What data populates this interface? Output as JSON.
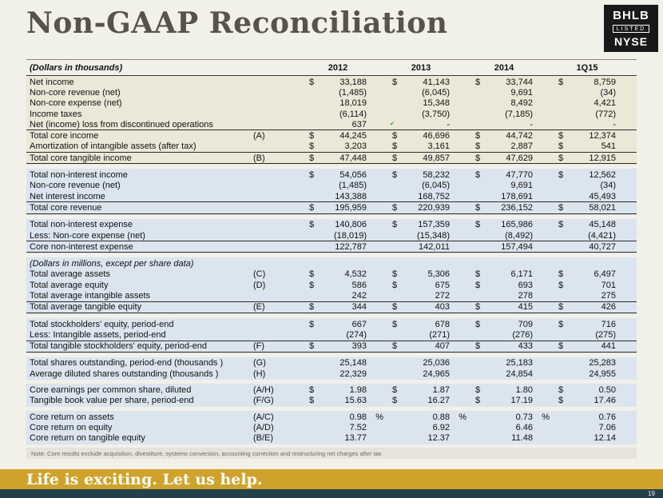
{
  "slide": {
    "title": "Non-GAAP Reconciliation"
  },
  "logo": {
    "ticker": "BHLB",
    "listed": "LISTED",
    "exchange": "NYSE"
  },
  "colors": {
    "section_beige": "#ebe8d8",
    "section_blue": "#dbe5ef",
    "footer_gold": "#cfa32b",
    "footer_teal": "#24414b",
    "title_gray": "#55534a"
  },
  "table": {
    "header": {
      "label": "(Dollars in thousands)",
      "columns": [
        "2012",
        "2013",
        "2014",
        "1Q15"
      ]
    },
    "sections": [
      {
        "bg": "beige",
        "rows": [
          {
            "label": "Net income",
            "cells": [
              "$ 33,188",
              "$ 41,143",
              "$ 33,744",
              "$ 8,759"
            ]
          },
          {
            "label": "Non-core revenue (net)",
            "cells": [
              "(1,485)",
              "(6,045)",
              "9,691",
              "(34)"
            ]
          },
          {
            "label": "Non-core expense (net)",
            "cells": [
              "18,019",
              "15,348",
              "8,492",
              "4,421"
            ]
          },
          {
            "label": "Income taxes",
            "cells": [
              "(6,114)",
              "(3,750)",
              "(7,185)",
              "(772)"
            ]
          },
          {
            "label": "Net (income) loss from discontinued operations",
            "cells": [
              "637",
              "-",
              "-",
              "-"
            ]
          },
          {
            "label": "Total core income",
            "tag": "(A)",
            "border": "bt",
            "cells": [
              "$ 44,245",
              "$ 46,696",
              "$ 44,742",
              "$ 12,374"
            ]
          },
          {
            "label": "Amortization of intangible assets (after tax)",
            "cells": [
              "$ 3,203",
              "$ 3,161",
              "$ 2,887",
              "$ 541"
            ]
          },
          {
            "label": "Total core tangible income",
            "tag": "(B)",
            "border": "bt bb",
            "cells": [
              "$ 47,448",
              "$ 49,857",
              "$ 47,629",
              "$ 12,915"
            ]
          }
        ]
      },
      {
        "bg": "blue",
        "rows": [
          {
            "label": "Total non-interest income",
            "cells": [
              "$ 54,056",
              "$ 58,232",
              "$ 47,770",
              "$ 12,562"
            ]
          },
          {
            "label": "Non-core revenue (net)",
            "cells": [
              "(1,485)",
              "(6,045)",
              "9,691",
              "(34)"
            ]
          },
          {
            "label": "Net interest income",
            "cells": [
              "143,388",
              "168,752",
              "178,691",
              "45,493"
            ]
          },
          {
            "label": "Total core revenue",
            "border": "bt bb",
            "cells": [
              "$ 195,959",
              "$ 220,939",
              "$ 236,152",
              "$ 58,021"
            ]
          }
        ]
      },
      {
        "bg": "blue",
        "rows": [
          {
            "label": "Total non-interest expense",
            "cells": [
              "$ 140,806",
              "$ 157,359",
              "$ 165,986",
              "$ 45,148"
            ]
          },
          {
            "label": "Less: Non-core expense (net)",
            "cells": [
              "(18,019)",
              "(15,348)",
              "(8,492)",
              "(4,421)"
            ]
          },
          {
            "label": "Core non-interest expense",
            "border": "bt bb",
            "cells": [
              "122,787",
              "142,011",
              "157,494",
              "40,727"
            ]
          }
        ]
      },
      {
        "bg": "blue",
        "rows": [
          {
            "label": "(Dollars in millions, except per share data)",
            "subheader": true,
            "italic": true
          },
          {
            "label": "Total average assets",
            "tag": "(C)",
            "cells": [
              "$ 4,532",
              "$ 5,306",
              "$ 6,171",
              "$ 6,497"
            ]
          },
          {
            "label": "Total average equity",
            "tag": "(D)",
            "cells": [
              "$ 586",
              "$ 675",
              "$ 693",
              "$ 701"
            ]
          },
          {
            "label": "Total average intangible assets",
            "cells": [
              "242",
              "272",
              "278",
              "275"
            ]
          },
          {
            "label": "Total average tangible equity",
            "tag": "(E)",
            "border": "bt bb",
            "cells": [
              "$ 344",
              "$ 403",
              "$ 415",
              "$ 426"
            ]
          }
        ]
      },
      {
        "bg": "blue",
        "rows": [
          {
            "label": "Total stockholders' equity, period-end",
            "cells": [
              "$ 667",
              "$ 678",
              "$ 709",
              "$ 716"
            ]
          },
          {
            "label": "Less: Intangible assets, period-end",
            "cells": [
              "(274)",
              "(271)",
              "(276)",
              "(275)"
            ]
          },
          {
            "label": "Total tangible stockholders' equity, period-end",
            "tag": "(F)",
            "border": "bt bb",
            "cells": [
              "$ 393",
              "$ 407",
              "$ 433",
              "$ 441"
            ]
          }
        ]
      },
      {
        "bg": "blue",
        "rows": [
          {
            "label": "Total shares outstanding, period-end (thousands )",
            "tag": "(G)",
            "cells": [
              "25,148",
              "25,036",
              "25,183",
              "25,283"
            ]
          },
          {
            "label": "Average diluted shares outstanding (thousands )",
            "tag": "(H)",
            "cells": [
              "22,329",
              "24,965",
              "24,854",
              "24,955"
            ]
          }
        ]
      },
      {
        "bg": "blue",
        "rows": [
          {
            "label": "Core earnings per common share, diluted",
            "tag": "(A/H)",
            "cells": [
              "$ 1.98",
              "$ 1.87",
              "$ 1.80",
              "$ 0.50"
            ]
          },
          {
            "label": "Tangible book value per share, period-end",
            "tag": "(F/G)",
            "cells": [
              "$ 15.63",
              "$ 16.27",
              "$ 17.19",
              "$ 17.46"
            ]
          }
        ]
      },
      {
        "bg": "blue",
        "rows": [
          {
            "label": "Core return on assets",
            "tag": "(A/C)",
            "cells": [
              "0.98 %",
              "0.88 %",
              "0.73 %",
              "0.76"
            ]
          },
          {
            "label": "Core return on equity",
            "tag": "(A/D)",
            "cells": [
              "7.52",
              "6.92",
              "6.46",
              "7.06"
            ]
          },
          {
            "label": "Core return on tangible equity",
            "tag": "(B/E)",
            "cells": [
              "13.77",
              "12.37",
              "11.48",
              "12.14"
            ]
          }
        ]
      }
    ]
  },
  "note": "Note:  Core results exclude acquisition, divestiture, systems conversion, accounting correction and restructuring net charges after tax",
  "footer": {
    "tagline": "Life is exciting. Let us help.",
    "page_number": "19"
  }
}
